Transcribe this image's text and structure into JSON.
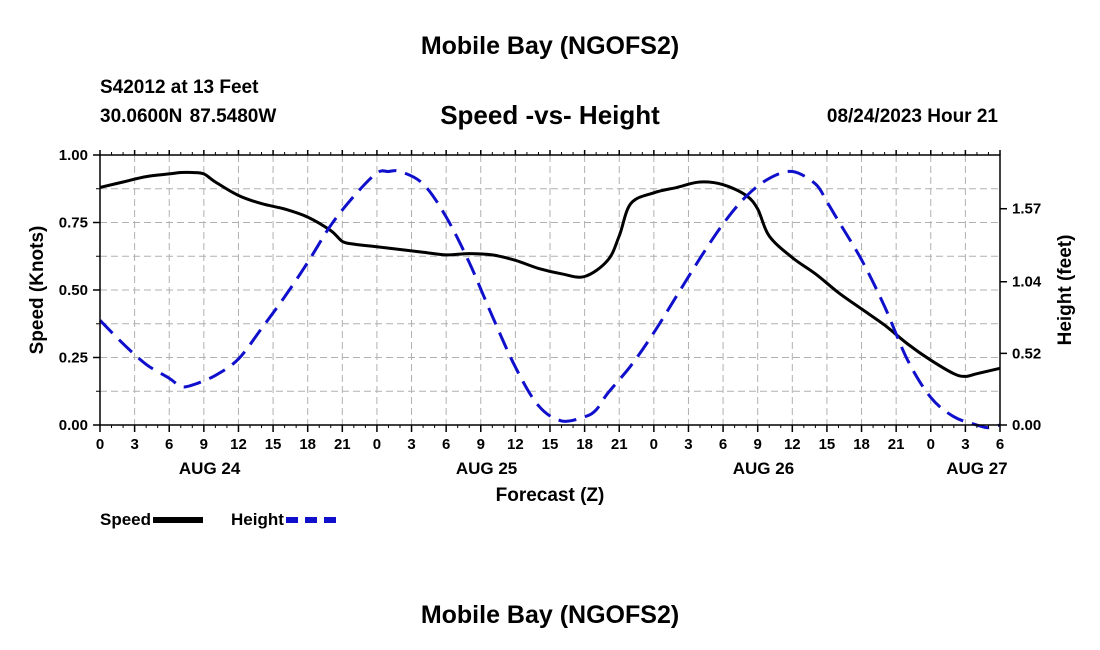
{
  "header": {
    "title": "Mobile Bay (NGOFS2)",
    "station": "S42012 at 13 Feet",
    "coordinates": "30.0600N  87.5480W",
    "subtitle": "Speed -vs- Height",
    "timestamp": "08/24/2023 Hour 21"
  },
  "footer": {
    "title": "Mobile Bay (NGOFS2)"
  },
  "legend": {
    "speed_label": "Speed",
    "height_label": "Height"
  },
  "colors": {
    "speed": "#000000",
    "height": "#1010cc",
    "grid": "#b0b0b0"
  },
  "chart_data": {
    "type": "line",
    "title": "Speed -vs- Height",
    "xlabel": "Forecast (Z)",
    "ylabel": "Speed (Knots)",
    "y2label": "Height (feet)",
    "xlim": [
      0,
      78
    ],
    "ylim": [
      0,
      1.0
    ],
    "y2lim": [
      -0.0,
      1.96
    ],
    "x_ticks": [
      0,
      3,
      6,
      9,
      12,
      15,
      18,
      21,
      24,
      27,
      30,
      33,
      36,
      39,
      42,
      45,
      48,
      51,
      54,
      57,
      60,
      63,
      66,
      69,
      72,
      75,
      78
    ],
    "x_tick_labels": [
      "0",
      "3",
      "6",
      "9",
      "12",
      "15",
      "18",
      "21",
      "0",
      "3",
      "6",
      "9",
      "12",
      "15",
      "18",
      "21",
      "0",
      "3",
      "6",
      "9",
      "12",
      "15",
      "18",
      "21",
      "0",
      "3",
      "6"
    ],
    "y_ticks": [
      0.0,
      0.25,
      0.5,
      0.75,
      1.0
    ],
    "y_tick_labels": [
      "0.00",
      "0.25",
      "0.50",
      "0.75",
      "1.00"
    ],
    "y2_ticks": [
      0.0,
      0.52,
      1.04,
      1.57
    ],
    "y2_tick_labels": [
      "0.00",
      "0.52",
      "1.04",
      "1.57"
    ],
    "date_labels": [
      {
        "x": 9.5,
        "label": "AUG 24"
      },
      {
        "x": 33.5,
        "label": "AUG 25"
      },
      {
        "x": 57.5,
        "label": "AUG 26"
      },
      {
        "x": 76,
        "label": "AUG 27"
      }
    ],
    "series": [
      {
        "name": "Speed",
        "axis": "left",
        "style": "solid",
        "x": [
          0,
          2,
          4,
          6,
          7,
          8,
          9,
          10,
          12,
          14,
          16,
          18,
          20,
          21,
          22,
          24,
          26,
          28,
          30,
          32,
          34,
          36,
          38,
          40,
          42,
          44,
          45,
          46,
          48,
          50,
          52,
          54,
          56,
          57,
          58,
          60,
          62,
          64,
          66,
          68,
          70,
          72,
          74,
          75,
          76,
          78
        ],
        "y": [
          0.88,
          0.9,
          0.92,
          0.93,
          0.935,
          0.935,
          0.93,
          0.9,
          0.85,
          0.82,
          0.8,
          0.77,
          0.72,
          0.68,
          0.67,
          0.66,
          0.65,
          0.64,
          0.63,
          0.635,
          0.63,
          0.61,
          0.58,
          0.56,
          0.55,
          0.61,
          0.7,
          0.82,
          0.86,
          0.88,
          0.9,
          0.89,
          0.85,
          0.8,
          0.7,
          0.62,
          0.56,
          0.49,
          0.43,
          0.37,
          0.3,
          0.24,
          0.19,
          0.18,
          0.19,
          0.21
        ]
      },
      {
        "name": "Height",
        "axis": "right",
        "style": "dashed",
        "x": [
          0,
          2,
          4,
          6,
          7,
          8,
          10,
          12,
          14,
          16,
          18,
          20,
          22,
          24,
          25,
          26,
          28,
          30,
          32,
          34,
          36,
          38,
          40,
          42,
          43,
          44,
          46,
          48,
          50,
          52,
          54,
          56,
          58,
          60,
          62,
          63,
          64,
          66,
          68,
          70,
          72,
          74,
          76,
          77,
          78
        ],
        "y": [
          0.76,
          0.59,
          0.44,
          0.34,
          0.28,
          0.29,
          0.36,
          0.48,
          0.7,
          0.93,
          1.18,
          1.45,
          1.66,
          1.83,
          1.84,
          1.84,
          1.75,
          1.51,
          1.18,
          0.79,
          0.42,
          0.14,
          0.03,
          0.06,
          0.11,
          0.23,
          0.43,
          0.67,
          0.94,
          1.21,
          1.46,
          1.66,
          1.79,
          1.84,
          1.75,
          1.62,
          1.48,
          1.2,
          0.86,
          0.47,
          0.2,
          0.06,
          0.0,
          -0.02,
          0.0
        ]
      }
    ]
  }
}
